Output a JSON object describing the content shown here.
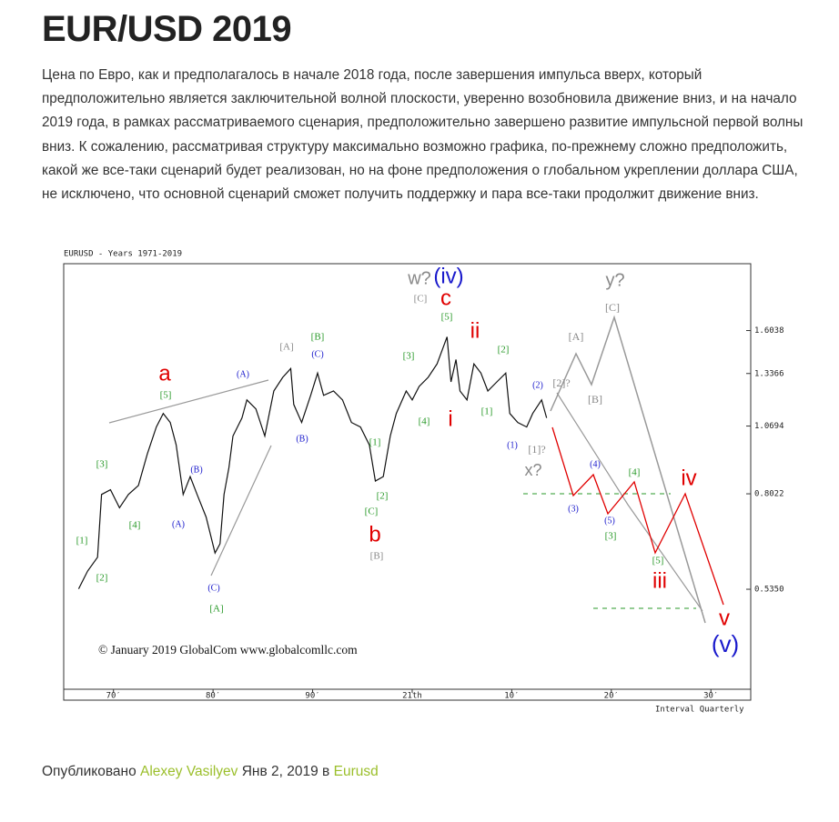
{
  "header": {
    "title": "EUR/USD 2019"
  },
  "article": {
    "text": "Цена по Евро, как и предполагалось в начале 2018 года, после завершения импульса вверх, который предположительно является заключительной волной плоскости, уверенно возобновила движение вниз, и на начало 2019 года, в рамках рассматриваемого сценария, предположительно завершено развитие импульсной первой волны вниз. К сожалению, рассматривая структуру максимально возможно графика, по-прежнему сложно предположить, какой же все-таки сценарий будет реализован, но на фоне предположения о глобальном укреплении доллара США, не исключено, что основной сценарий сможет получить поддержку и пара все-таки продолжит движение вниз."
  },
  "chart_data": {
    "type": "line",
    "title": "EURUSD - Years 1971-2019",
    "x_label": "Interval Quarterly",
    "annotation": "© January 2019 GlobalCom www.globalcomllc.com",
    "color": "#111",
    "log_scale": true,
    "x": [
      1966.5,
      1967.4,
      1968.4,
      1968.8,
      1969.7,
      1970.6,
      1971.5,
      1972.5,
      1973.4,
      1974.3,
      1975.0,
      1975.7,
      1976.3,
      1977.0,
      1977.7,
      1978.4,
      1979.3,
      1980.2,
      1980.7,
      1981.1,
      1981.6,
      1982.0,
      1982.9,
      1983.4,
      1984.3,
      1985.2,
      1986.1,
      1987.0,
      1987.8,
      1988.1,
      1988.9,
      1989.8,
      1990.5,
      1991.1,
      1992.1,
      1993.0,
      1993.9,
      1994.8,
      1995.7,
      1996.3,
      1997.1,
      1997.8,
      1998.4,
      1999.4,
      2000.0,
      2000.7,
      2001.6,
      2002.5,
      2003.5,
      2003.9,
      2004.4,
      2004.8,
      2005.5,
      2006.2,
      2006.9,
      2007.6,
      2008.5,
      2009.4,
      2009.8,
      2010.6,
      2011.5,
      2012.1,
      2013.0,
      2013.5
    ],
    "values": [
      0.536,
      0.578,
      0.613,
      0.8,
      0.816,
      0.756,
      0.8,
      0.831,
      0.95,
      1.065,
      1.128,
      1.086,
      0.987,
      0.8,
      0.863,
      0.8,
      0.727,
      0.624,
      0.649,
      0.8,
      0.897,
      1.025,
      1.107,
      1.195,
      1.15,
      1.025,
      1.241,
      1.315,
      1.365,
      1.172,
      1.086,
      1.218,
      1.339,
      1.218,
      1.241,
      1.195,
      1.086,
      1.065,
      0.987,
      0.847,
      0.863,
      1.025,
      1.128,
      1.241,
      1.195,
      1.265,
      1.315,
      1.392,
      1.561,
      1.29,
      1.418,
      1.241,
      1.195,
      1.392,
      1.339,
      1.241,
      1.29,
      1.339,
      1.128,
      1.086,
      1.065,
      1.128,
      1.195,
      1.107
    ],
    "xlim": [
      1965,
      2034
    ],
    "ylim": [
      0.35,
      2.13
    ],
    "xticks": [
      {
        "value": 1970,
        "label": "70′"
      },
      {
        "value": 1980,
        "label": "80′"
      },
      {
        "value": 1990,
        "label": "90′"
      },
      {
        "value": 2000,
        "label": "21th"
      },
      {
        "value": 2010,
        "label": "10′"
      },
      {
        "value": 2020,
        "label": "20′"
      },
      {
        "value": 2030,
        "label": "30′"
      }
    ],
    "yticks": [
      1.6038,
      1.3366,
      1.0694,
      0.8022,
      {
        "value": 0.535,
        "label": "0.5350"
      }
    ],
    "wave_labels": [
      {
        "text": "[1]",
        "color": "#2a9a2a"
      },
      {
        "text": "[2]",
        "color": "#2a9a2a"
      },
      {
        "text": "[3]",
        "color": "#2a9a2a"
      },
      {
        "text": "[4]",
        "color": "#2a9a2a"
      },
      {
        "text": "[5]",
        "color": "#2a9a2a"
      },
      {
        "text": "a",
        "color": "#e00000"
      },
      {
        "text": "(A)",
        "color": "#1a1acc"
      },
      {
        "text": "(B)",
        "color": "#1a1acc"
      },
      {
        "text": "(A)",
        "color": "#1a1acc"
      },
      {
        "text": "(C)",
        "color": "#1a1acc"
      },
      {
        "text": "[A]",
        "color": "#2a9a2a"
      },
      {
        "text": "[A]",
        "color": "#888888"
      },
      {
        "text": "[B]",
        "color": "#2a9a2a"
      },
      {
        "text": "(C)",
        "color": "#1a1acc"
      },
      {
        "text": "(B)",
        "color": "#1a1acc"
      },
      {
        "text": "[1]",
        "color": "#2a9a2a"
      },
      {
        "text": "[2]",
        "color": "#2a9a2a"
      },
      {
        "text": "[C]",
        "color": "#2a9a2a"
      },
      {
        "text": "b",
        "color": "#e00000"
      },
      {
        "text": "[B]",
        "color": "#888888"
      },
      {
        "text": "[3]",
        "color": "#2a9a2a"
      },
      {
        "text": "[4]",
        "color": "#2a9a2a"
      },
      {
        "text": "[5]",
        "color": "#2a9a2a"
      },
      {
        "text": "c",
        "color": "#e00000"
      },
      {
        "text": "[C]",
        "color": "#888888"
      },
      {
        "text": "w?",
        "color": "#888888"
      },
      {
        "text": "(iv)",
        "color": "#1a1acc"
      },
      {
        "text": "ii",
        "color": "#e00000"
      },
      {
        "text": "i",
        "color": "#e00000"
      },
      {
        "text": "[2]",
        "color": "#2a9a2a"
      },
      {
        "text": "[1]",
        "color": "#2a9a2a"
      },
      {
        "text": "(2)",
        "color": "#1a1acc"
      },
      {
        "text": "(1)",
        "color": "#1a1acc"
      },
      {
        "text": "[1]?",
        "color": "#888888"
      },
      {
        "text": "x?",
        "color": "#888888"
      },
      {
        "text": "[2]?",
        "color": "#888888"
      },
      {
        "text": "[A]",
        "color": "#888888"
      },
      {
        "text": "[B]",
        "color": "#888888"
      },
      {
        "text": "[C]",
        "color": "#888888"
      },
      {
        "text": "y?",
        "color": "#888888"
      },
      {
        "text": "(3)",
        "color": "#1a1acc"
      },
      {
        "text": "(4)",
        "color": "#1a1acc"
      },
      {
        "text": "(5)",
        "color": "#1a1acc"
      },
      {
        "text": "[3]",
        "color": "#2a9a2a"
      },
      {
        "text": "[4]",
        "color": "#2a9a2a"
      },
      {
        "text": "[5]",
        "color": "#2a9a2a"
      },
      {
        "text": "iii",
        "color": "#e00000"
      },
      {
        "text": "iv",
        "color": "#e00000"
      },
      {
        "text": "v",
        "color": "#e00000"
      },
      {
        "text": "(v)",
        "color": "#1a1acc"
      }
    ]
  },
  "footer": {
    "prefix": "Опубликовано",
    "author": "Alexey Vasilyev",
    "date": "Янв 2, 2019 в",
    "category": "Eurusd"
  }
}
